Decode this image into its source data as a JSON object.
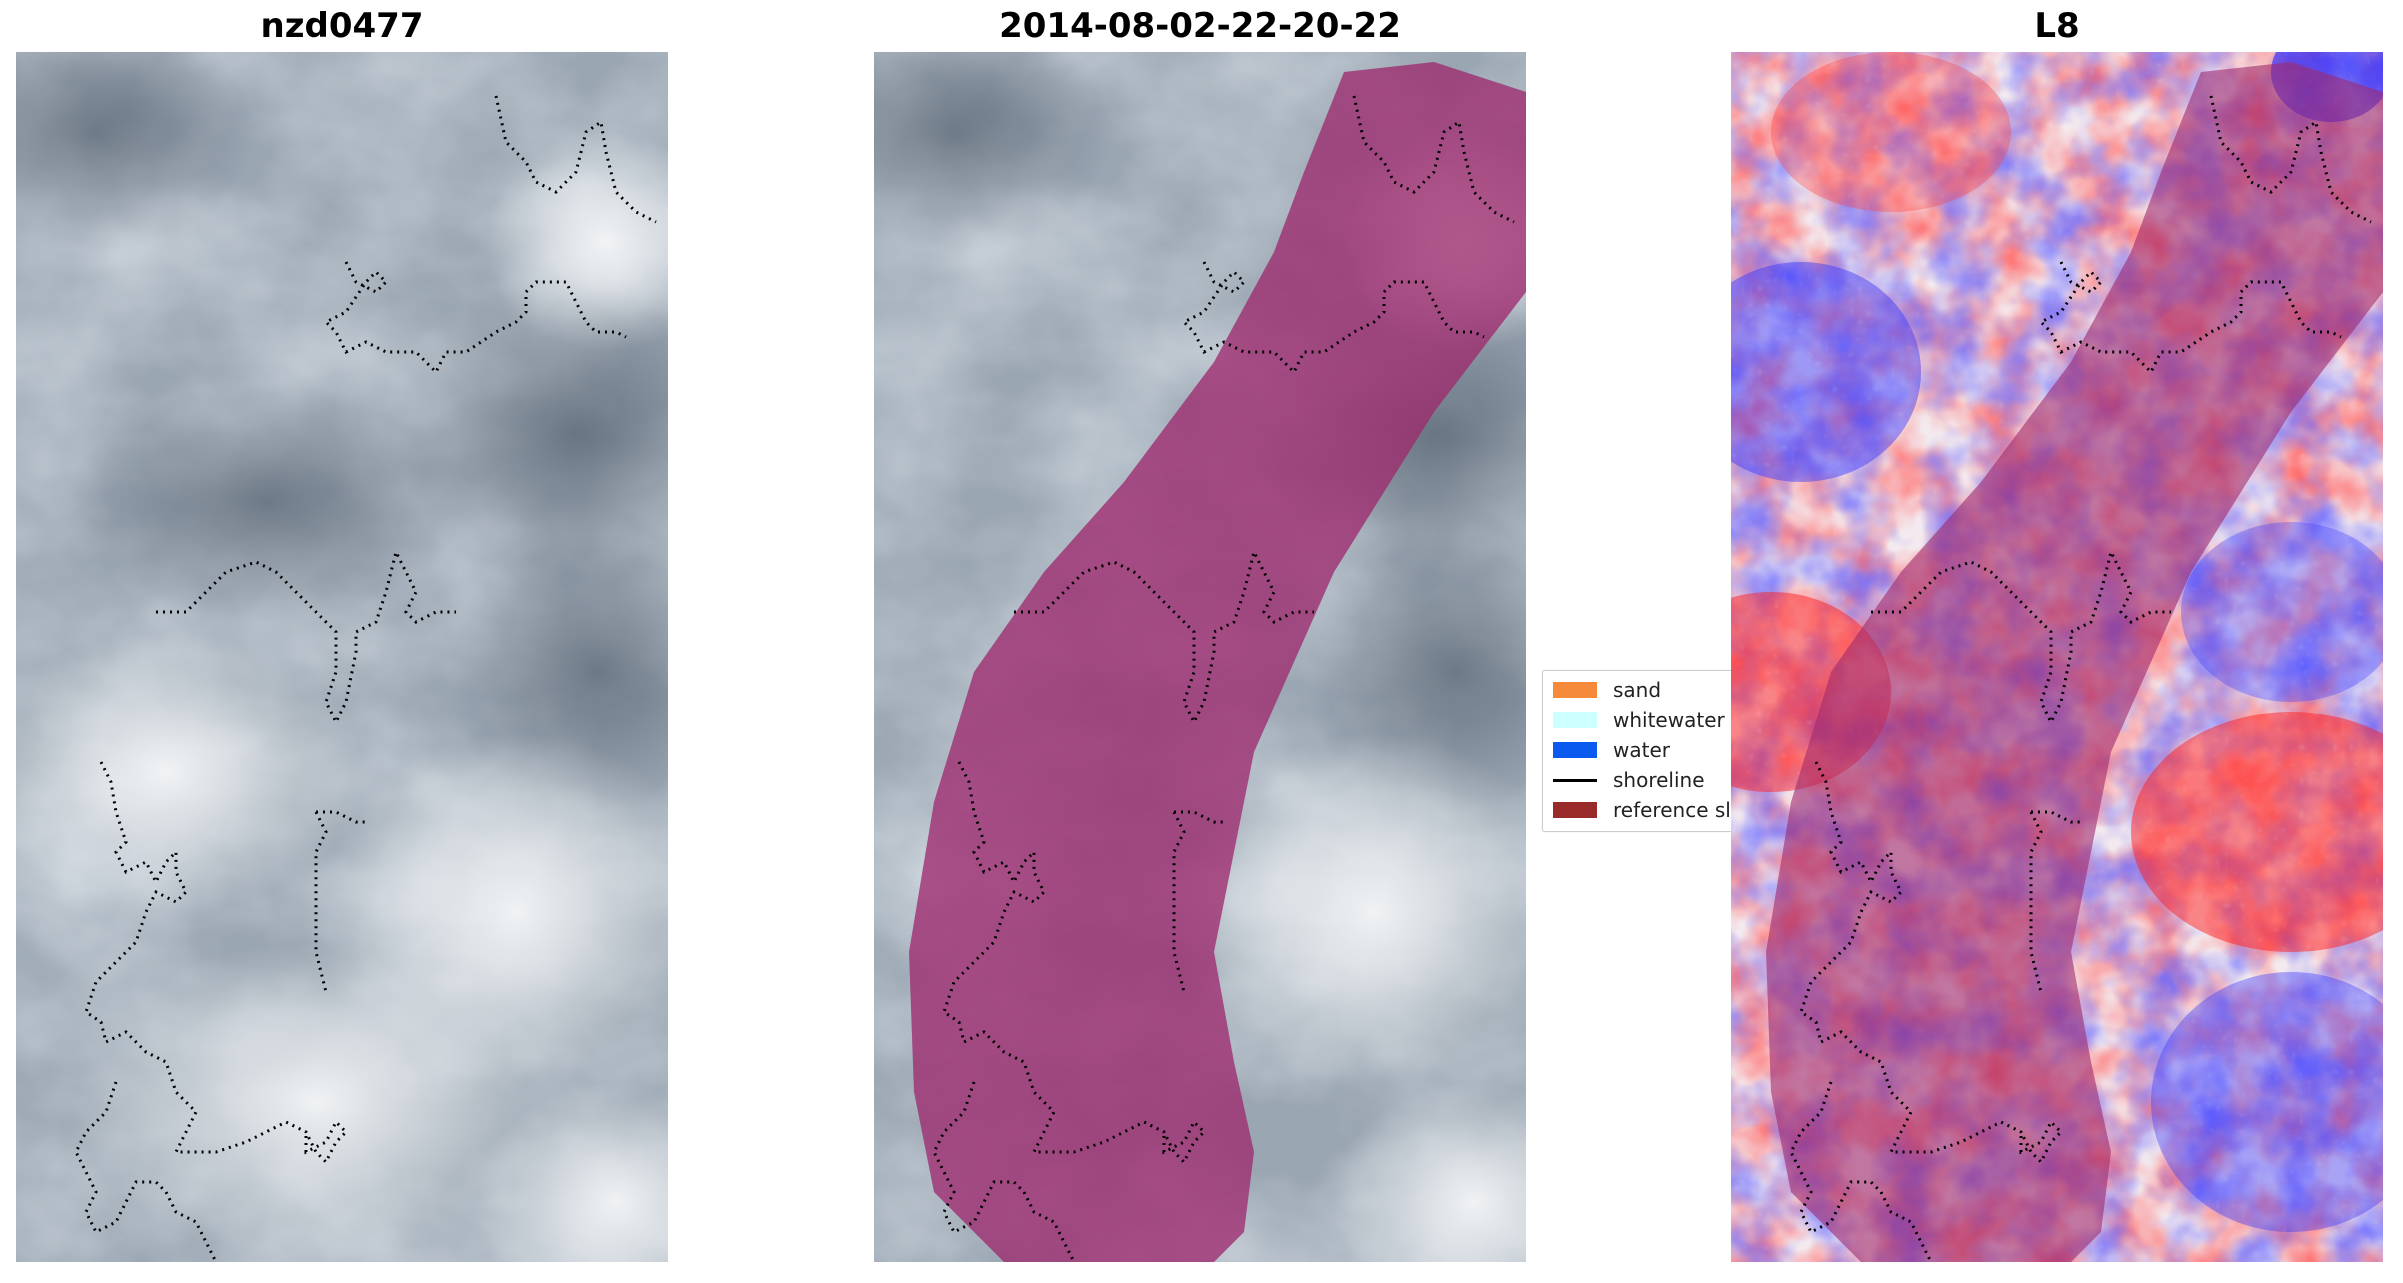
{
  "panels": [
    {
      "title": "nzd0477"
    },
    {
      "title": "2014-08-02-22-20-22"
    },
    {
      "title": "L8"
    }
  ],
  "legend": {
    "items": [
      {
        "label": "sand",
        "color": "#f58a3a",
        "kind": "swatch"
      },
      {
        "label": "whitewater",
        "color": "#ccffff",
        "kind": "swatch"
      },
      {
        "label": "water",
        "color": "#0a5af0",
        "kind": "swatch"
      },
      {
        "label": "shoreline",
        "color": "#000000",
        "kind": "line"
      },
      {
        "label": "reference sl",
        "color": "#9a2a2a",
        "kind": "swatch"
      }
    ]
  },
  "colors": {
    "buffer_overlay": "#9e2a6e",
    "cloud_dark": "#6f7c8a",
    "cloud_light": "#e8ecef",
    "index_positive": "#ff2020",
    "index_negative": "#2020ff"
  }
}
